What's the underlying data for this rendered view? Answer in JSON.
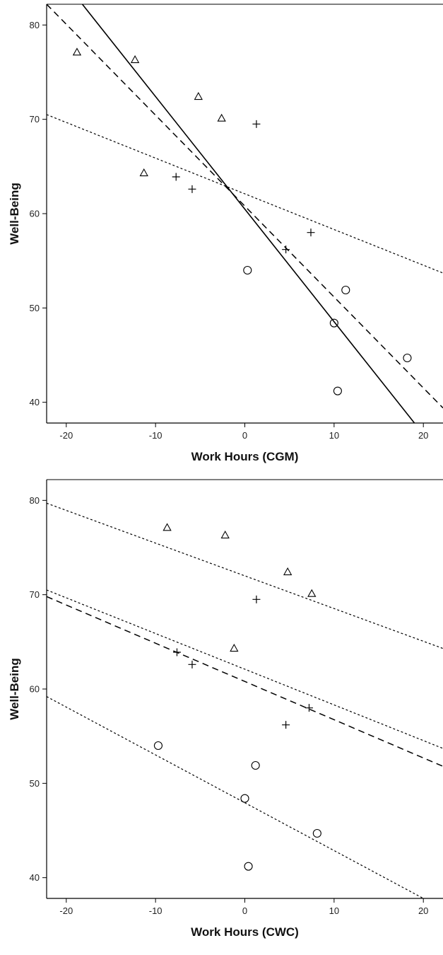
{
  "chart_data": [
    {
      "type": "scatter",
      "xlabel": "Work Hours (CGM)",
      "ylabel": "Well-Being",
      "xlim": [
        -22.2,
        22.2
      ],
      "ylim": [
        37.8,
        82.2
      ],
      "xticks": [
        -20,
        -10,
        0,
        10,
        20
      ],
      "yticks": [
        40,
        50,
        60,
        70,
        80
      ],
      "x_tick_labels": [
        "-20",
        "-10",
        "0",
        "10",
        "20"
      ],
      "y_tick_labels": [
        "40",
        "50",
        "60",
        "70",
        "80"
      ],
      "grid": false,
      "series": [
        {
          "marker": "triangle",
          "points": [
            [
              -18.8,
              77.1
            ],
            [
              -12.3,
              76.3
            ],
            [
              -11.3,
              64.3
            ],
            [
              -5.2,
              72.4
            ],
            [
              -2.6,
              70.1
            ]
          ]
        },
        {
          "marker": "plus",
          "points": [
            [
              -7.7,
              63.9
            ],
            [
              -5.9,
              62.6
            ],
            [
              1.3,
              69.5
            ],
            [
              4.6,
              56.2
            ],
            [
              7.4,
              58.0
            ]
          ]
        },
        {
          "marker": "circle",
          "points": [
            [
              0.3,
              54.0
            ],
            [
              10.0,
              48.4
            ],
            [
              10.4,
              41.2
            ],
            [
              11.3,
              51.9
            ],
            [
              18.2,
              44.7
            ]
          ]
        }
      ],
      "lines": [
        {
          "style": "solid",
          "x": [
            -18.2,
            19.0
          ],
          "y": [
            82.2,
            37.8
          ]
        },
        {
          "style": "dashed",
          "x": [
            -22.2,
            22.2
          ],
          "y": [
            82.2,
            39.4
          ]
        },
        {
          "style": "dotted",
          "x": [
            -22.2,
            22.2
          ],
          "y": [
            70.5,
            53.7
          ]
        }
      ]
    },
    {
      "type": "scatter",
      "xlabel": "Work Hours (CWC)",
      "ylabel": "Well-Being",
      "xlim": [
        -22.2,
        22.2
      ],
      "ylim": [
        37.8,
        82.2
      ],
      "xticks": [
        -20,
        -10,
        0,
        10,
        20
      ],
      "yticks": [
        40,
        50,
        60,
        70,
        80
      ],
      "x_tick_labels": [
        "-20",
        "-10",
        "0",
        "10",
        "20"
      ],
      "y_tick_labels": [
        "40",
        "50",
        "60",
        "70",
        "80"
      ],
      "grid": false,
      "series": [
        {
          "marker": "triangle",
          "points": [
            [
              -8.7,
              77.1
            ],
            [
              -2.2,
              76.3
            ],
            [
              -1.2,
              64.3
            ],
            [
              4.8,
              72.4
            ],
            [
              7.5,
              70.1
            ]
          ]
        },
        {
          "marker": "plus",
          "points": [
            [
              -7.6,
              63.9
            ],
            [
              -5.9,
              62.6
            ],
            [
              1.3,
              69.5
            ],
            [
              4.6,
              56.2
            ],
            [
              7.2,
              58.0
            ]
          ]
        },
        {
          "marker": "circle",
          "points": [
            [
              -9.7,
              54.0
            ],
            [
              0.0,
              48.4
            ],
            [
              0.4,
              41.2
            ],
            [
              1.2,
              51.9
            ],
            [
              8.1,
              44.7
            ]
          ]
        }
      ],
      "lines": [
        {
          "style": "dotted",
          "x": [
            -22.2,
            22.2
          ],
          "y": [
            79.7,
            64.3
          ]
        },
        {
          "style": "dotted",
          "x": [
            -22.2,
            22.2
          ],
          "y": [
            70.5,
            53.7
          ]
        },
        {
          "style": "dashed",
          "x": [
            -22.2,
            22.2
          ],
          "y": [
            69.8,
            51.8
          ]
        },
        {
          "style": "dotted",
          "x": [
            -22.2,
            20.0
          ],
          "y": [
            59.2,
            37.8
          ]
        }
      ]
    }
  ]
}
